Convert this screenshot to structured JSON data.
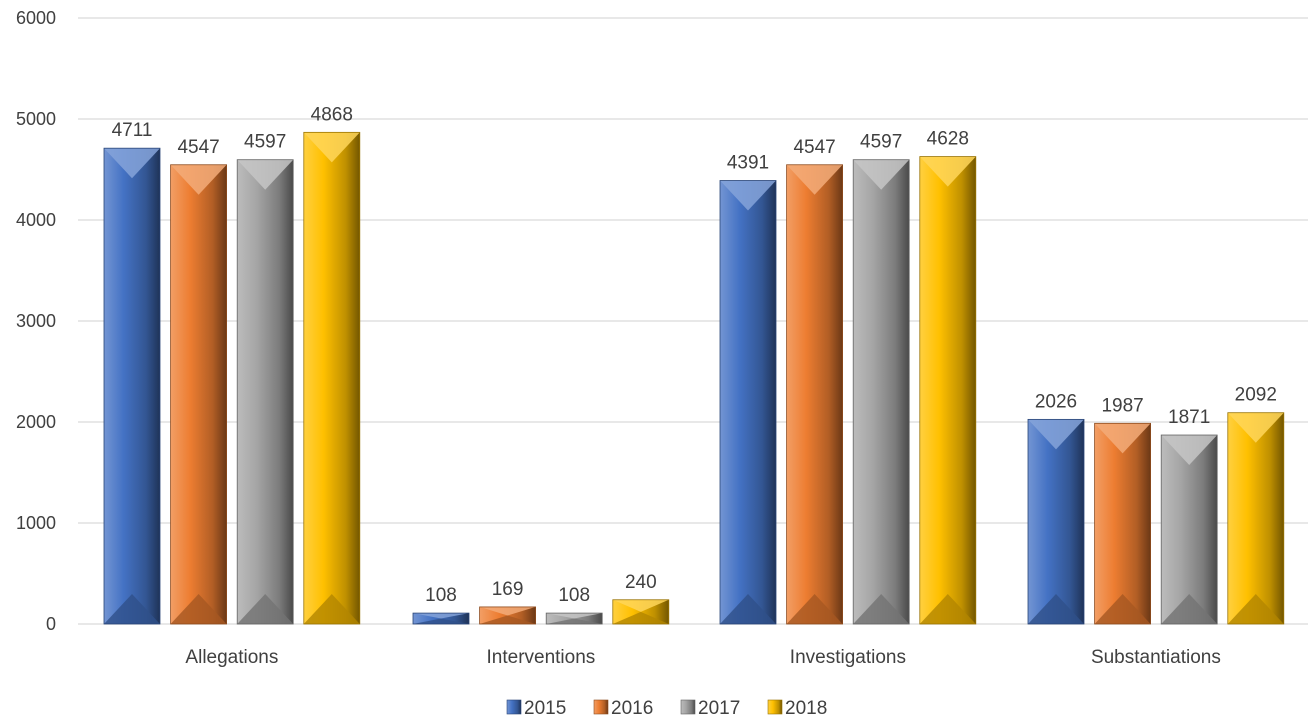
{
  "chart_data": {
    "type": "bar",
    "categories": [
      "Allegations",
      "Interventions",
      "Investigations",
      "Substantiations"
    ],
    "series": [
      {
        "name": "2015",
        "values": [
          4711,
          108,
          4391,
          2026
        ]
      },
      {
        "name": "2016",
        "values": [
          4547,
          169,
          4547,
          1987
        ]
      },
      {
        "name": "2017",
        "values": [
          4597,
          108,
          4597,
          1871
        ]
      },
      {
        "name": "2018",
        "values": [
          4868,
          240,
          4628,
          2092
        ]
      }
    ],
    "yticks": [
      "0",
      "1000",
      "2000",
      "3000",
      "4000",
      "5000",
      "6000"
    ],
    "ylim": [
      0,
      6000
    ],
    "grid": true,
    "legend": "bottom"
  },
  "colors": {
    "2015": "#4472c4",
    "2016": "#ed7d31",
    "2017": "#a5a5a5",
    "2018": "#ffc000",
    "grid": "#d9d9d9",
    "text": "#404040"
  }
}
